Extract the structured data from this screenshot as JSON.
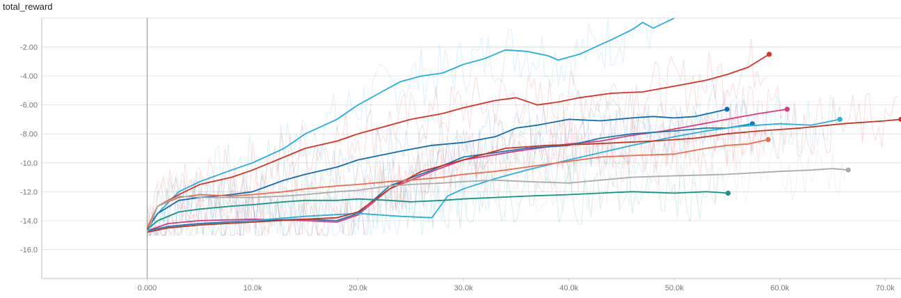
{
  "chart_data": {
    "type": "line",
    "title": "total_reward",
    "xlabel": "",
    "ylabel": "",
    "xlim": [
      -10000,
      71500
    ],
    "ylim": [
      -18,
      0
    ],
    "x_ticks": [
      0,
      10000,
      20000,
      30000,
      40000,
      50000,
      60000,
      70000
    ],
    "x_tick_labels": [
      "0.000",
      "10.0k",
      "20.0k",
      "30.0k",
      "40.0k",
      "50.0k",
      "60.0k",
      "70.0k"
    ],
    "y_ticks": [
      -2,
      -4,
      -6,
      -8,
      -10,
      -12,
      -14,
      -16
    ],
    "y_tick_labels": [
      "-2.00",
      "-4.00",
      "-6.00",
      "-8.00",
      "-10.0",
      "-12.0",
      "-14.0",
      "-16.0"
    ],
    "grid": true,
    "series": [
      {
        "color": "#22aee0",
        "x": [
          0,
          1000,
          3000,
          5000,
          8000,
          10000,
          13000,
          15000,
          18000,
          20000,
          22000,
          24000,
          26000,
          28000,
          30000,
          32000,
          33000,
          34000,
          36000,
          38000,
          39000,
          41000,
          44000,
          46000,
          47000,
          48000,
          50000
        ],
        "values": [
          -14.5,
          -13.5,
          -12.0,
          -11.3,
          -10.5,
          -10.0,
          -9.0,
          -8.0,
          -7.0,
          -6.0,
          -5.2,
          -4.4,
          -4.0,
          -3.8,
          -3.2,
          -2.8,
          -2.5,
          -2.2,
          -2.3,
          -2.6,
          -2.9,
          -2.5,
          -1.5,
          -0.8,
          -0.3,
          -0.7,
          0.0
        ]
      },
      {
        "color": "#d93025",
        "x": [
          0,
          1000,
          3000,
          5000,
          8000,
          10000,
          13000,
          15000,
          18000,
          20000,
          23000,
          25000,
          28000,
          30000,
          33000,
          35000,
          37000,
          39000,
          41000,
          44000,
          47000,
          50000,
          53000,
          55000,
          57000,
          59000
        ],
        "values": [
          -14.5,
          -13.0,
          -12.2,
          -11.5,
          -11.0,
          -10.5,
          -9.6,
          -9.0,
          -8.5,
          -8.0,
          -7.4,
          -7.0,
          -6.6,
          -6.2,
          -5.7,
          -5.5,
          -6.0,
          -5.8,
          -5.5,
          -5.2,
          -5.1,
          -4.7,
          -4.3,
          -3.9,
          -3.4,
          -2.5
        ]
      },
      {
        "color": "#0c6cb5",
        "x": [
          0,
          1000,
          3000,
          5000,
          8000,
          10000,
          13000,
          15000,
          18000,
          20000,
          24000,
          27000,
          30000,
          33000,
          35000,
          37000,
          40000,
          43000,
          46000,
          48000,
          50000,
          52000,
          55000
        ],
        "values": [
          -14.6,
          -13.5,
          -12.6,
          -12.4,
          -12.2,
          -12.0,
          -11.2,
          -10.8,
          -10.3,
          -9.8,
          -9.2,
          -8.8,
          -8.6,
          -8.2,
          -7.6,
          -7.4,
          -7.0,
          -7.1,
          -6.9,
          -6.8,
          -6.9,
          -6.8,
          -6.3
        ]
      },
      {
        "color": "#e0357f",
        "x": [
          0,
          2000,
          5000,
          10000,
          15000,
          18000,
          20000,
          23000,
          27000,
          30000,
          35000,
          38000,
          40000,
          43000,
          46000,
          49000,
          52000,
          55000,
          58000,
          60700
        ],
        "values": [
          -14.7,
          -14.2,
          -14.0,
          -13.9,
          -14.0,
          -14.1,
          -13.6,
          -11.8,
          -10.6,
          -9.8,
          -9.2,
          -8.9,
          -8.7,
          -8.5,
          -8.1,
          -7.8,
          -7.4,
          -7.0,
          -6.6,
          -6.3
        ]
      },
      {
        "color": "#157ab8",
        "x": [
          0,
          2000,
          5000,
          10000,
          15000,
          18000,
          20000,
          23000,
          27000,
          30000,
          33000,
          36000,
          40000,
          43000,
          46000,
          50000,
          53000,
          55000,
          57400
        ],
        "values": [
          -14.7,
          -14.4,
          -14.2,
          -14.0,
          -13.9,
          -14.0,
          -13.5,
          -11.6,
          -10.5,
          -9.6,
          -9.3,
          -9.0,
          -8.8,
          -8.3,
          -8.0,
          -7.8,
          -7.6,
          -7.6,
          -7.3
        ]
      },
      {
        "color": "#26b0df",
        "x": [
          0,
          2000,
          5000,
          10000,
          15000,
          20000,
          24000,
          27000,
          28500,
          30000,
          33000,
          36000,
          40000,
          43000,
          46000,
          50000,
          53000,
          56000,
          60000,
          63000,
          65700
        ],
        "values": [
          -14.8,
          -14.5,
          -14.3,
          -14.0,
          -13.7,
          -13.5,
          -13.7,
          -13.8,
          -12.3,
          -11.8,
          -11.1,
          -10.5,
          -9.8,
          -9.3,
          -8.8,
          -8.2,
          -7.8,
          -7.5,
          -7.3,
          -7.4,
          -7.0
        ]
      },
      {
        "color": "#c9321f",
        "x": [
          0,
          2000,
          5000,
          10000,
          15000,
          18000,
          20000,
          23000,
          26000,
          30000,
          34000,
          38000,
          42000,
          45000,
          48000,
          52000,
          55000,
          58000,
          62000,
          66000,
          70000,
          71500
        ],
        "values": [
          -14.8,
          -14.5,
          -14.3,
          -14.1,
          -13.9,
          -13.8,
          -13.4,
          -11.8,
          -10.6,
          -9.8,
          -9.0,
          -8.8,
          -8.7,
          -8.6,
          -8.5,
          -8.3,
          -8.0,
          -7.8,
          -7.6,
          -7.3,
          -7.1,
          -7.0
        ]
      },
      {
        "color": "#ef6c4c",
        "x": [
          0,
          1000,
          3000,
          5000,
          8000,
          10000,
          13000,
          15000,
          18000,
          20000,
          23000,
          25000,
          28000,
          30000,
          33000,
          36000,
          40000,
          43000,
          46000,
          50000,
          53000,
          55000,
          57000,
          58900
        ],
        "values": [
          -14.5,
          -13.0,
          -12.4,
          -12.2,
          -12.3,
          -12.2,
          -12.0,
          -11.8,
          -11.6,
          -11.5,
          -11.3,
          -11.2,
          -11.0,
          -10.8,
          -10.6,
          -10.3,
          -9.9,
          -9.6,
          -9.5,
          -9.4,
          -9.0,
          -8.8,
          -8.7,
          -8.4
        ]
      },
      {
        "color": "#aaaaaa",
        "x": [
          0,
          1000,
          3000,
          5000,
          8000,
          10000,
          13000,
          15000,
          18000,
          20000,
          23000,
          25000,
          28000,
          30000,
          33000,
          36000,
          40000,
          43000,
          46000,
          50000,
          55000,
          60000,
          63000,
          65000,
          66500
        ],
        "values": [
          -14.8,
          -13.0,
          -12.3,
          -12.4,
          -12.4,
          -12.4,
          -12.3,
          -12.2,
          -12.0,
          -11.9,
          -11.6,
          -11.5,
          -11.4,
          -11.3,
          -11.2,
          -11.3,
          -11.4,
          -11.2,
          -11.0,
          -10.9,
          -10.8,
          -10.6,
          -10.5,
          -10.4,
          -10.5
        ]
      },
      {
        "color": "#13948a",
        "x": [
          0,
          1000,
          3000,
          5000,
          8000,
          10000,
          13000,
          15000,
          18000,
          20000,
          23000,
          25000,
          28000,
          30000,
          33000,
          36000,
          40000,
          43000,
          46000,
          50000,
          53000,
          55100
        ],
        "values": [
          -14.6,
          -14.0,
          -13.4,
          -13.2,
          -13.0,
          -12.9,
          -12.7,
          -12.6,
          -12.6,
          -12.5,
          -12.6,
          -12.7,
          -12.6,
          -12.5,
          -12.4,
          -12.3,
          -12.2,
          -12.1,
          -12.0,
          -12.1,
          -12.0,
          -12.1
        ]
      }
    ]
  }
}
